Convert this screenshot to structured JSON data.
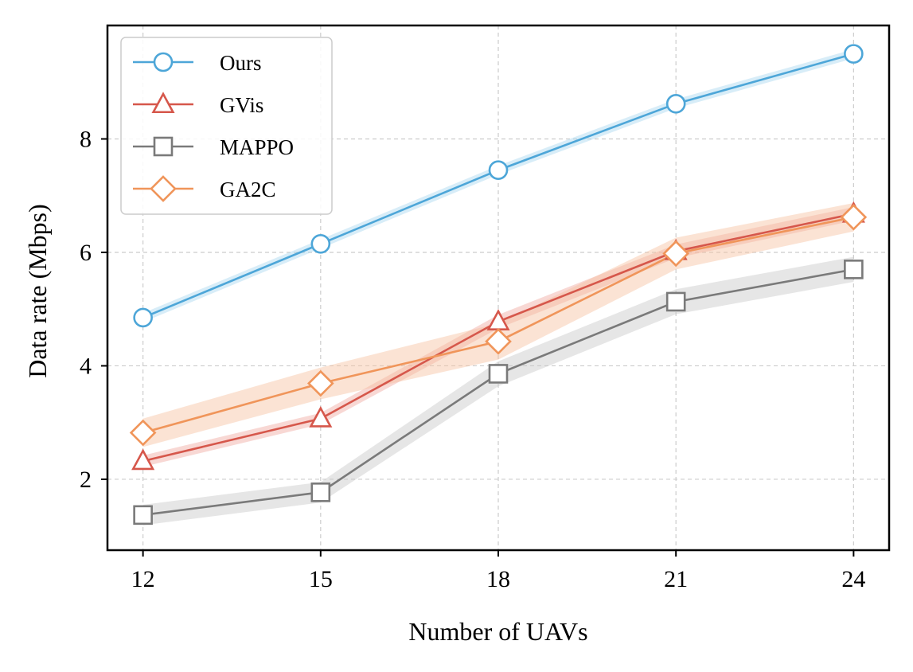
{
  "chart_data": {
    "type": "line",
    "title": "",
    "xlabel": "Number of UAVs",
    "ylabel": "Data rate (Mbps)",
    "x": [
      12,
      15,
      18,
      21,
      24
    ],
    "xticks": [
      "12",
      "15",
      "18",
      "21",
      "24"
    ],
    "yticks": [
      "2",
      "4",
      "6",
      "8"
    ],
    "xlim": [
      11.4,
      24.6
    ],
    "ylim": [
      0.75,
      10.0
    ],
    "grid": true,
    "legend_position": "top-left",
    "series": [
      {
        "name": "Ours",
        "marker": "circle",
        "color": "#4da6d8",
        "band_color": "#a8d8f0",
        "values": [
          4.85,
          6.15,
          7.45,
          8.62,
          9.5
        ],
        "band": [
          0.08,
          0.08,
          0.08,
          0.08,
          0.08
        ]
      },
      {
        "name": "GVis",
        "marker": "triangle",
        "color": "#d6574b",
        "band_color": "#f0a8a0",
        "values": [
          2.32,
          3.07,
          4.78,
          6.02,
          6.68
        ],
        "band": [
          0.1,
          0.1,
          0.12,
          0.12,
          0.12
        ]
      },
      {
        "name": "MAPPO",
        "marker": "square",
        "color": "#7a7a7a",
        "band_color": "#c8c8c8",
        "values": [
          1.37,
          1.77,
          3.86,
          5.13,
          5.7
        ],
        "band": [
          0.18,
          0.18,
          0.22,
          0.22,
          0.22
        ]
      },
      {
        "name": "GA2C",
        "marker": "diamond",
        "color": "#f0955a",
        "band_color": "#f6c2a0",
        "values": [
          2.82,
          3.69,
          4.43,
          5.98,
          6.62
        ],
        "band": [
          0.25,
          0.28,
          0.32,
          0.28,
          0.25
        ]
      }
    ]
  }
}
